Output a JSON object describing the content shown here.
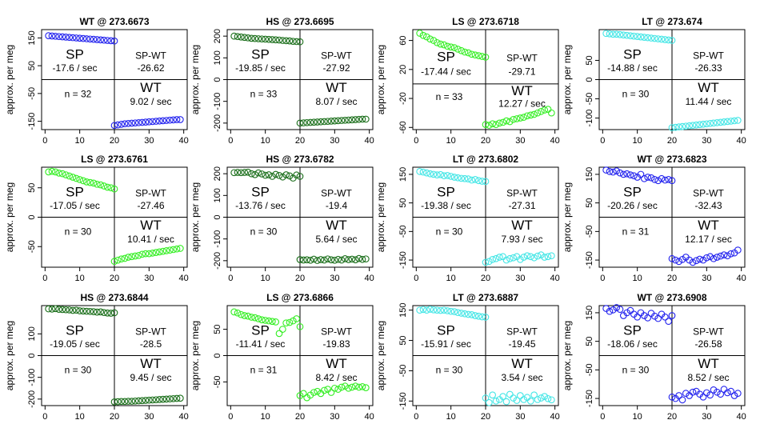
{
  "figure": {
    "y_axis_label": "approx. per meg"
  },
  "chart_data": [
    {
      "type": "scatter",
      "title": "WT @ 273.6673",
      "ylabel": "approx. per meg",
      "ylim": [
        -180,
        180
      ],
      "yticks": [
        -150,
        -50,
        50,
        150
      ],
      "xticks": [
        0,
        10,
        20,
        30,
        40
      ],
      "xlim": [
        -1,
        41
      ],
      "split_x": 20,
      "color": "#2222ee",
      "sp": {
        "label": "SP",
        "rate": "-17.6 / sec"
      },
      "sp_wt": {
        "label": "SP-WT",
        "value": "-26.62"
      },
      "wt": {
        "label": "WT",
        "rate": "9.02 / sec"
      },
      "n": "n = 32",
      "sp_points": [
        158,
        157,
        156,
        155,
        154,
        153,
        152,
        151,
        150,
        149,
        148,
        147,
        146,
        145,
        144,
        143,
        142,
        141,
        140,
        139
      ],
      "wt_points": [
        -165,
        -163,
        -161,
        -159,
        -158,
        -157,
        -156,
        -155,
        -154,
        -153,
        -152,
        -151,
        -150,
        -149,
        -148,
        -147,
        -146,
        -145,
        -144,
        -144
      ]
    },
    {
      "type": "scatter",
      "title": "HS @ 273.6695",
      "ylabel": "approx. per meg",
      "ylim": [
        -230,
        230
      ],
      "yticks": [
        -200,
        -100,
        0,
        100,
        200
      ],
      "xticks": [
        0,
        10,
        20,
        30,
        40
      ],
      "xlim": [
        -1,
        41
      ],
      "split_x": 20,
      "color": "#1a6e1a",
      "sp": {
        "label": "SP",
        "rate": "-19.85 / sec"
      },
      "sp_wt": {
        "label": "SP-WT",
        "value": "-27.92"
      },
      "wt": {
        "label": "WT",
        "rate": "8.07 / sec"
      },
      "n": "n = 33",
      "sp_points": [
        200,
        198,
        196,
        194,
        192,
        190,
        189,
        188,
        187,
        186,
        185,
        184,
        183,
        182,
        180,
        179,
        178,
        176,
        175,
        174
      ],
      "wt_points": [
        -200,
        -199,
        -198,
        -197,
        -196,
        -195,
        -194,
        -193,
        -192,
        -191,
        -190,
        -189,
        -188,
        -187,
        -186,
        -185,
        -184,
        -183,
        -182,
        -182
      ]
    },
    {
      "type": "scatter",
      "title": "LS @ 273.6718",
      "ylabel": "approx. per meg",
      "ylim": [
        -63,
        75
      ],
      "yticks": [
        -60,
        -20,
        20,
        60
      ],
      "xticks": [
        0,
        10,
        20,
        30,
        40
      ],
      "xlim": [
        -1,
        41
      ],
      "split_x": 20,
      "color": "#33ee22",
      "sp": {
        "label": "SP",
        "rate": "-17.44 / sec"
      },
      "sp_wt": {
        "label": "SP-WT",
        "value": "-29.71"
      },
      "wt": {
        "label": "WT",
        "rate": "12.27 / sec"
      },
      "n": "n = 33",
      "sp_points": [
        70,
        67,
        65,
        62,
        60,
        57,
        55,
        54,
        52,
        51,
        50,
        48,
        46,
        44,
        43,
        41,
        40,
        39,
        38,
        37
      ],
      "wt_points": [
        -56,
        -57,
        -55,
        -56,
        -54,
        -53,
        -51,
        -52,
        -49,
        -48,
        -47,
        -46,
        -44,
        -43,
        -42,
        -40,
        -38,
        -36,
        -35,
        -40
      ]
    },
    {
      "type": "scatter",
      "title": "LT @ 273.674",
      "ylabel": "approx. per meg",
      "ylim": [
        -130,
        130
      ],
      "yticks": [
        -100,
        -50,
        0,
        50
      ],
      "xticks": [
        0,
        10,
        20,
        30,
        40
      ],
      "xlim": [
        -1,
        41
      ],
      "split_x": 20,
      "color": "#44e6e6",
      "sp": {
        "label": "SP",
        "rate": "-14.88 / sec"
      },
      "sp_wt": {
        "label": "SP-WT",
        "value": "-26.33"
      },
      "wt": {
        "label": "WT",
        "rate": "11.44 / sec"
      },
      "n": "n = 30",
      "sp_points": [
        120,
        119,
        118,
        118,
        117,
        116,
        115,
        114,
        113,
        112,
        111,
        110,
        109,
        108,
        107,
        106,
        105,
        104,
        103,
        102
      ],
      "wt_points": [
        -125,
        -124,
        -123,
        -122,
        -121,
        -120,
        -119,
        -118,
        -117,
        -116,
        -115,
        -114,
        -113,
        -112,
        -111,
        -110,
        -109,
        -108,
        -107,
        -106
      ]
    },
    {
      "type": "scatter",
      "title": "LS @ 273.6761",
      "ylabel": "approx. per meg",
      "ylim": [
        -85,
        85
      ],
      "yticks": [
        -50,
        0,
        50
      ],
      "xticks": [
        0,
        10,
        20,
        30,
        40
      ],
      "xlim": [
        -1,
        41
      ],
      "split_x": 20,
      "color": "#33ee22",
      "sp": {
        "label": "SP",
        "rate": "-17.05 / sec"
      },
      "sp_wt": {
        "label": "SP-WT",
        "value": "-27.46"
      },
      "wt": {
        "label": "WT",
        "rate": "10.41 / sec"
      },
      "n": "n = 30",
      "sp_points": [
        77,
        78,
        77,
        75,
        74,
        72,
        70,
        68,
        66,
        64,
        62,
        60,
        59,
        58,
        56,
        55,
        53,
        51,
        50,
        48
      ],
      "wt_points": [
        -75,
        -73,
        -71,
        -70,
        -68,
        -67,
        -66,
        -65,
        -63,
        -62,
        -62,
        -61,
        -60,
        -59,
        -58,
        -57,
        -56,
        -55,
        -54,
        -53
      ]
    },
    {
      "type": "scatter",
      "title": "HS @ 273.6782",
      "ylabel": "approx. per meg",
      "ylim": [
        -230,
        230
      ],
      "yticks": [
        -200,
        -100,
        0,
        100,
        200
      ],
      "xticks": [
        0,
        10,
        20,
        30,
        40
      ],
      "xlim": [
        -1,
        41
      ],
      "split_x": 20,
      "color": "#1a6e1a",
      "sp": {
        "label": "SP",
        "rate": "-13.76 / sec"
      },
      "sp_wt": {
        "label": "SP-WT",
        "value": "-19.4"
      },
      "wt": {
        "label": "WT",
        "rate": "5.64 / sec"
      },
      "n": "n = 30",
      "sp_points": [
        205,
        206,
        205,
        206,
        207,
        200,
        196,
        204,
        199,
        193,
        195,
        188,
        197,
        192,
        185,
        195,
        190,
        180,
        194,
        188
      ],
      "wt_points": [
        -195,
        -197,
        -196,
        -198,
        -193,
        -199,
        -195,
        -197,
        -192,
        -196,
        -198,
        -194,
        -197,
        -191,
        -195,
        -193,
        -196,
        -190,
        -194,
        -192
      ]
    },
    {
      "type": "scatter",
      "title": "LT @ 273.6802",
      "ylabel": "approx. per meg",
      "ylim": [
        -175,
        175
      ],
      "yticks": [
        -150,
        -50,
        50,
        150
      ],
      "xticks": [
        0,
        10,
        20,
        30,
        40
      ],
      "xlim": [
        -1,
        41
      ],
      "split_x": 20,
      "color": "#44e6e6",
      "sp": {
        "label": "SP",
        "rate": "-19.38 / sec"
      },
      "sp_wt": {
        "label": "SP-WT",
        "value": "-27.31"
      },
      "wt": {
        "label": "WT",
        "rate": "7.93 / sec"
      },
      "n": "n = 30",
      "sp_points": [
        160,
        158,
        155,
        152,
        150,
        148,
        149,
        145,
        146,
        143,
        140,
        138,
        136,
        135,
        134,
        130,
        132,
        128,
        126,
        125
      ],
      "wt_points": [
        -158,
        -155,
        -148,
        -145,
        -140,
        -138,
        -150,
        -145,
        -142,
        -138,
        -148,
        -140,
        -135,
        -138,
        -142,
        -136,
        -132,
        -140,
        -138,
        -135
      ]
    },
    {
      "type": "scatter",
      "title": "WT @ 273.6823",
      "ylabel": "approx. per meg",
      "ylim": [
        -175,
        175
      ],
      "yticks": [
        -150,
        -50,
        50,
        150
      ],
      "xticks": [
        0,
        10,
        20,
        30,
        40
      ],
      "xlim": [
        -1,
        41
      ],
      "split_x": 20,
      "color": "#2222ee",
      "sp": {
        "label": "SP",
        "rate": "-20.26 / sec"
      },
      "sp_wt": {
        "label": "SP-WT",
        "value": "-32.43"
      },
      "wt": {
        "label": "WT",
        "rate": "12.17 / sec"
      },
      "n": "n = 31",
      "sp_points": [
        165,
        160,
        158,
        162,
        155,
        150,
        152,
        148,
        145,
        140,
        150,
        135,
        140,
        138,
        132,
        128,
        135,
        130,
        132,
        128
      ],
      "wt_points": [
        -145,
        -150,
        -155,
        -148,
        -140,
        -150,
        -158,
        -152,
        -147,
        -150,
        -142,
        -138,
        -145,
        -140,
        -136,
        -132,
        -135,
        -128,
        -125,
        -115
      ]
    },
    {
      "type": "scatter",
      "title": "HS @ 273.6844",
      "ylabel": "approx. per meg",
      "ylim": [
        -230,
        230
      ],
      "yticks": [
        -200,
        -100,
        0,
        100
      ],
      "xticks": [
        0,
        10,
        20,
        30,
        40
      ],
      "xlim": [
        -1,
        41
      ],
      "split_x": 20,
      "color": "#1a6e1a",
      "sp": {
        "label": "SP",
        "rate": "-19.05 / sec"
      },
      "sp_wt": {
        "label": "SP-WT",
        "value": "-28.5"
      },
      "wt": {
        "label": "WT",
        "rate": "9.45 / sec"
      },
      "n": "n = 30",
      "sp_points": [
        215,
        214,
        216,
        213,
        212,
        211,
        210,
        208,
        209,
        206,
        205,
        204,
        203,
        202,
        200,
        201,
        198,
        196,
        195,
        197
      ],
      "wt_points": [
        -213,
        -212,
        -211,
        -211,
        -210,
        -210,
        -209,
        -208,
        -207,
        -206,
        -205,
        -204,
        -203,
        -202,
        -201,
        -200,
        -199,
        -198,
        -197,
        -196
      ]
    },
    {
      "type": "scatter",
      "title": "LS @ 273.6866",
      "ylabel": "approx. per meg",
      "ylim": [
        -95,
        95
      ],
      "yticks": [
        -50,
        0,
        50
      ],
      "xticks": [
        0,
        10,
        20,
        30,
        40
      ],
      "xlim": [
        -1,
        41
      ],
      "split_x": 20,
      "color": "#33ee22",
      "sp": {
        "label": "SP",
        "rate": "-11.41 / sec"
      },
      "sp_wt": {
        "label": "SP-WT",
        "value": "-19.83"
      },
      "wt": {
        "label": "WT",
        "rate": "8.42 / sec"
      },
      "n": "n = 31",
      "sp_points": [
        83,
        81,
        78,
        76,
        75,
        73,
        72,
        70,
        68,
        67,
        66,
        65,
        64,
        42,
        50,
        62,
        63,
        66,
        70,
        55
      ],
      "wt_points": [
        -76,
        -72,
        -80,
        -75,
        -70,
        -68,
        -72,
        -66,
        -64,
        -70,
        -62,
        -64,
        -60,
        -58,
        -62,
        -60,
        -58,
        -60,
        -59,
        -61
      ]
    },
    {
      "type": "scatter",
      "title": "LT @ 273.6887",
      "ylabel": "approx. per meg",
      "ylim": [
        -165,
        165
      ],
      "yticks": [
        -150,
        -50,
        50,
        150
      ],
      "xticks": [
        0,
        10,
        20,
        30,
        40
      ],
      "xlim": [
        -1,
        41
      ],
      "split_x": 20,
      "color": "#44e6e6",
      "sp": {
        "label": "SP",
        "rate": "-15.91 / sec"
      },
      "sp_wt": {
        "label": "SP-WT",
        "value": "-19.45"
      },
      "wt": {
        "label": "WT",
        "rate": "3.54 / sec"
      },
      "n": "n = 30",
      "sp_points": [
        150,
        152,
        150,
        153,
        151,
        150,
        149,
        150,
        148,
        146,
        145,
        142,
        140,
        138,
        136,
        135,
        132,
        130,
        128,
        127
      ],
      "wt_points": [
        -140,
        -155,
        -130,
        -150,
        -145,
        -135,
        -152,
        -128,
        -140,
        -148,
        -132,
        -145,
        -138,
        -150,
        -130,
        -145,
        -140,
        -135,
        -142,
        -146
      ]
    },
    {
      "type": "scatter",
      "title": "WT @ 273.6908",
      "ylabel": "approx. per meg",
      "ylim": [
        -175,
        175
      ],
      "yticks": [
        -150,
        -50,
        50,
        150
      ],
      "xticks": [
        0,
        10,
        20,
        30,
        40
      ],
      "xlim": [
        -1,
        41
      ],
      "split_x": 20,
      "color": "#2222ee",
      "sp": {
        "label": "SP",
        "rate": "-18.06 / sec"
      },
      "sp_wt": {
        "label": "SP-WT",
        "value": "-26.58"
      },
      "wt": {
        "label": "WT",
        "rate": "8.52 / sec"
      },
      "n": "n = 30",
      "sp_points": [
        165,
        155,
        160,
        168,
        162,
        140,
        150,
        158,
        145,
        135,
        150,
        140,
        132,
        148,
        138,
        130,
        145,
        135,
        120,
        140
      ],
      "wt_points": [
        -145,
        -150,
        -140,
        -155,
        -132,
        -140,
        -128,
        -125,
        -135,
        -145,
        -130,
        -138,
        -120,
        -128,
        -135,
        -118,
        -130,
        -125,
        -140,
        -132
      ]
    }
  ]
}
